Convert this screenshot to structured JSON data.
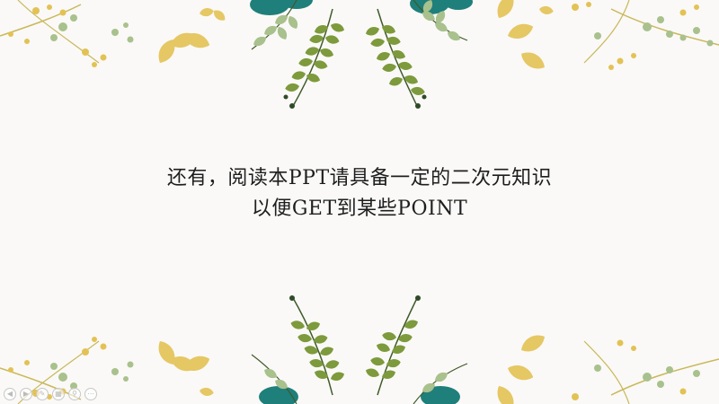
{
  "slide": {
    "line1": "还有，阅读本PPT请具备一定的二次元知识",
    "line2": "以便GET到某些POINT"
  },
  "controls": [
    {
      "name": "prev-slide-icon",
      "glyph": "◀"
    },
    {
      "name": "next-slide-icon",
      "glyph": "▶"
    },
    {
      "name": "pen-icon",
      "glyph": "✎"
    },
    {
      "name": "slides-grid-icon",
      "glyph": "▦"
    },
    {
      "name": "zoom-icon",
      "glyph": "⚲"
    },
    {
      "name": "more-options-icon",
      "glyph": "⋯"
    }
  ],
  "colors": {
    "background": "#faf9f7",
    "text": "#1e1e1e",
    "leaf_green": "#7d9a3c",
    "leaf_dark": "#3f5a2a",
    "teal": "#1f7f7a",
    "yellow": "#e3c255",
    "sage": "#a9c18d"
  }
}
